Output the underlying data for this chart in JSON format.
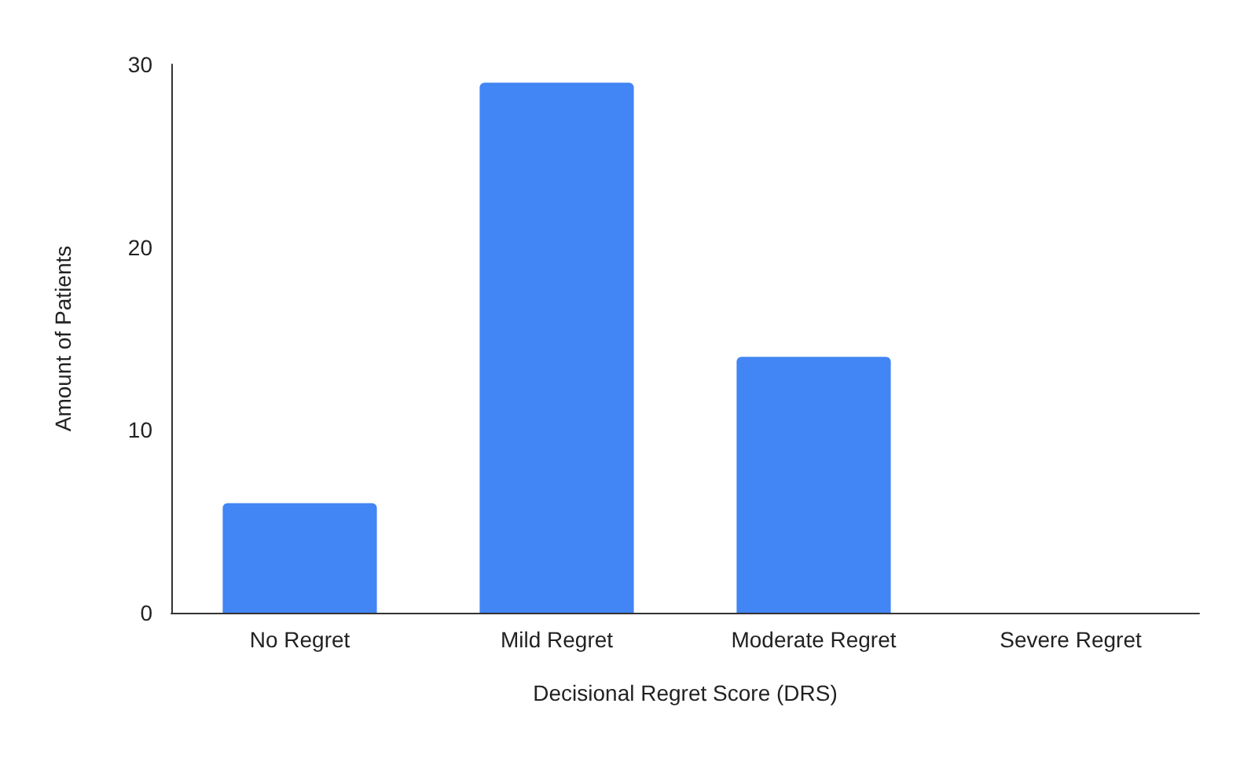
{
  "chart_data": {
    "type": "bar",
    "xlabel": "Decisional Regret Score (DRS)",
    "ylabel": "Amount of Patients",
    "categories": [
      "No Regret",
      "Mild Regret",
      "Moderate Regret",
      "Severe Regret"
    ],
    "values": [
      6,
      29,
      14,
      0
    ],
    "color": "#4285f4",
    "ylim": [
      0,
      30
    ],
    "yticks": [
      0,
      10,
      20,
      30
    ],
    "grid": false
  }
}
